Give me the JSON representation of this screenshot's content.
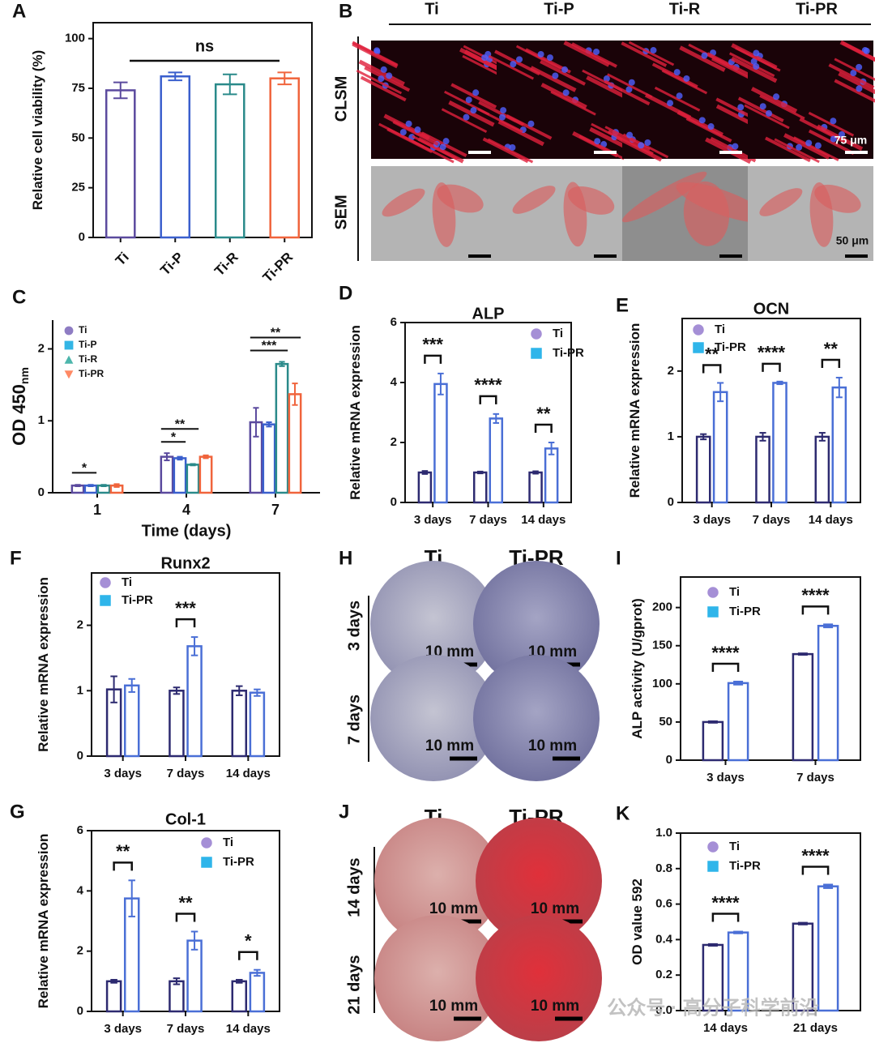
{
  "chart_data": [
    {
      "type": "bar",
      "panel": "A",
      "ylabel": "Relative cell viability (%)",
      "categories": [
        "Ti",
        "Ti-P",
        "Ti-R",
        "Ti-PR"
      ],
      "values": [
        74,
        81,
        77,
        80
      ],
      "errors": [
        4,
        2,
        5,
        3
      ],
      "colors": [
        "#5b4a9e",
        "#3a5fcd",
        "#2a8a8a",
        "#f0643c"
      ],
      "ylim": [
        0,
        108
      ],
      "yticks": [
        0,
        25,
        50,
        75,
        100
      ],
      "annotation": "ns"
    },
    {
      "type": "bar",
      "panel": "C",
      "ylabel": "OD 450",
      "ylabel_sub": "nm",
      "xlabel": "Time (days)",
      "categories": [
        "1",
        "4",
        "7"
      ],
      "series": [
        {
          "name": "Ti",
          "color": "#5b4a9e",
          "marker_color": "#8e7cc3",
          "marker": "circle",
          "values": [
            0.1,
            0.5,
            0.98
          ],
          "errors": [
            0.01,
            0.05,
            0.2
          ]
        },
        {
          "name": "Ti-P",
          "color": "#3a5fcd",
          "marker_color": "#33b5e5",
          "marker": "square",
          "values": [
            0.1,
            0.48,
            0.95
          ],
          "errors": [
            0.01,
            0.02,
            0.03
          ]
        },
        {
          "name": "Ti-R",
          "color": "#2a8a8a",
          "marker_color": "#4db6ac",
          "marker": "triangle",
          "values": [
            0.1,
            0.39,
            1.79
          ],
          "errors": [
            0.01,
            0.01,
            0.03
          ]
        },
        {
          "name": "Ti-PR",
          "color": "#f0643c",
          "marker_color": "#ff8a65",
          "marker": "triangle-down",
          "values": [
            0.1,
            0.5,
            1.37
          ],
          "errors": [
            0.02,
            0.02,
            0.15
          ]
        }
      ],
      "ylim": [
        0,
        2.4
      ],
      "yticks": [
        0,
        1,
        2
      ],
      "significance": [
        [
          "*"
        ],
        [
          "*",
          "**"
        ],
        [
          "***",
          "**"
        ]
      ]
    },
    {
      "type": "bar",
      "panel": "D",
      "title": "ALP",
      "ylabel": "Relative mRNA expression",
      "categories": [
        "3 days",
        "7 days",
        "14 days"
      ],
      "series": [
        {
          "name": "Ti",
          "color": "#2d2a70",
          "marker_color": "#a58fd6",
          "marker": "circle",
          "values": [
            1,
            1,
            1
          ],
          "errors": [
            0.05,
            0.03,
            0.04
          ]
        },
        {
          "name": "Ti-PR",
          "color": "#4a6fd6",
          "marker_color": "#2fb5ea",
          "marker": "square",
          "values": [
            3.95,
            2.8,
            1.8
          ],
          "errors": [
            0.35,
            0.15,
            0.2
          ]
        }
      ],
      "ylim": [
        0,
        6
      ],
      "yticks": [
        0,
        2,
        4,
        6
      ],
      "significance": [
        [
          "***"
        ],
        [
          "****"
        ],
        [
          "**"
        ]
      ]
    },
    {
      "type": "bar",
      "panel": "E",
      "title": "OCN",
      "ylabel": "Relative mRNA expression",
      "categories": [
        "3 days",
        "7 days",
        "14 days"
      ],
      "series": [
        {
          "name": "Ti",
          "color": "#2d2a70",
          "marker_color": "#a58fd6",
          "marker": "circle",
          "values": [
            1,
            1,
            1
          ],
          "errors": [
            0.04,
            0.06,
            0.06
          ]
        },
        {
          "name": "Ti-PR",
          "color": "#4a6fd6",
          "marker_color": "#2fb5ea",
          "marker": "square",
          "values": [
            1.68,
            1.82,
            1.75
          ],
          "errors": [
            0.14,
            0.02,
            0.15
          ]
        }
      ],
      "ylim": [
        0,
        2.8
      ],
      "yticks": [
        0,
        1,
        2
      ],
      "significance": [
        [
          "**"
        ],
        [
          "****"
        ],
        [
          "**"
        ]
      ]
    },
    {
      "type": "bar",
      "panel": "F",
      "title": "Runx2",
      "ylabel": "Relative mRNA expression",
      "categories": [
        "3 days",
        "7 days",
        "14 days"
      ],
      "series": [
        {
          "name": "Ti",
          "color": "#2d2a70",
          "marker_color": "#a58fd6",
          "marker": "circle",
          "values": [
            1.02,
            1.0,
            1.0
          ],
          "errors": [
            0.2,
            0.05,
            0.07
          ]
        },
        {
          "name": "Ti-PR",
          "color": "#4a6fd6",
          "marker_color": "#2fb5ea",
          "marker": "square",
          "values": [
            1.08,
            1.68,
            0.97
          ],
          "errors": [
            0.1,
            0.14,
            0.05
          ]
        }
      ],
      "ylim": [
        0,
        2.8
      ],
      "yticks": [
        0,
        1,
        2
      ],
      "significance": [
        [],
        [
          "***"
        ],
        []
      ]
    },
    {
      "type": "bar",
      "panel": "G",
      "title": "Col-1",
      "ylabel": "Relative mRNA expression",
      "categories": [
        "3 days",
        "7 days",
        "14 days"
      ],
      "series": [
        {
          "name": "Ti",
          "color": "#2d2a70",
          "marker_color": "#a58fd6",
          "marker": "circle",
          "values": [
            1,
            1,
            1
          ],
          "errors": [
            0.05,
            0.1,
            0.05
          ]
        },
        {
          "name": "Ti-PR",
          "color": "#4a6fd6",
          "marker_color": "#2fb5ea",
          "marker": "square",
          "values": [
            3.75,
            2.35,
            1.28
          ],
          "errors": [
            0.6,
            0.3,
            0.1
          ]
        }
      ],
      "ylim": [
        0,
        6
      ],
      "yticks": [
        0,
        2,
        4,
        6
      ],
      "significance": [
        [
          "**"
        ],
        [
          "**"
        ],
        [
          "*"
        ]
      ]
    },
    {
      "type": "bar",
      "panel": "I",
      "ylabel": "ALP activity (U/gprot)",
      "categories": [
        "3 days",
        "7 days"
      ],
      "series": [
        {
          "name": "Ti",
          "color": "#2d2a70",
          "marker_color": "#a58fd6",
          "marker": "circle",
          "values": [
            50,
            139
          ],
          "errors": [
            1,
            1
          ]
        },
        {
          "name": "Ti-PR",
          "color": "#4a6fd6",
          "marker_color": "#2fb5ea",
          "marker": "square",
          "values": [
            101,
            176
          ],
          "errors": [
            2,
            2
          ]
        }
      ],
      "ylim": [
        0,
        240
      ],
      "yticks": [
        0,
        50,
        100,
        150,
        200
      ],
      "significance": [
        [
          "****"
        ],
        [
          "****"
        ]
      ]
    },
    {
      "type": "bar",
      "panel": "K",
      "ylabel": "OD value 592",
      "categories": [
        "14 days",
        "21 days"
      ],
      "series": [
        {
          "name": "Ti",
          "color": "#2d2a70",
          "marker_color": "#a58fd6",
          "marker": "circle",
          "values": [
            0.37,
            0.49
          ],
          "errors": [
            0.005,
            0.005
          ]
        },
        {
          "name": "Ti-PR",
          "color": "#4a6fd6",
          "marker_color": "#2fb5ea",
          "marker": "square",
          "values": [
            0.44,
            0.7
          ],
          "errors": [
            0.005,
            0.01
          ]
        }
      ],
      "ylim": [
        0,
        1
      ],
      "yticks": [
        {
          "value": 0,
          "label": "0.0"
        },
        0.2,
        0.4,
        0.6,
        0.8,
        {
          "value": 1,
          "label": "1.0"
        }
      ],
      "significance": [
        [
          "****"
        ],
        [
          "****"
        ]
      ]
    }
  ],
  "image_panels": [
    {
      "panel": "B",
      "columns": [
        "Ti",
        "Ti-P",
        "Ti-R",
        "Ti-PR"
      ],
      "rows": [
        "CLSM",
        "SEM"
      ],
      "scale_labels": [
        "75 μm",
        "50 μm"
      ]
    },
    {
      "panel": "H",
      "columns": [
        "Ti",
        "Ti-PR"
      ],
      "rows": [
        "3 days",
        "7 days"
      ],
      "scale_label": "10 mm"
    },
    {
      "panel": "J",
      "columns": [
        "Ti",
        "Ti-PR"
      ],
      "rows": [
        "14 days",
        "21 days"
      ],
      "scale_label": "10 mm"
    }
  ],
  "watermark": "公众号 · 高分子科学前沿"
}
